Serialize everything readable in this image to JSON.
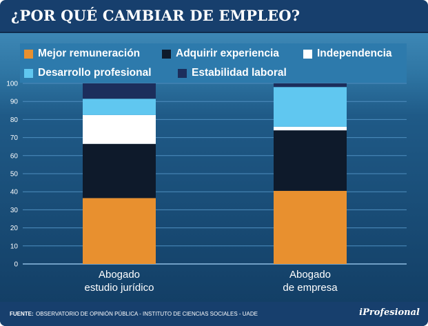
{
  "title": "¿POR QUÉ CAMBIAR DE EMPLEO?",
  "colors": {
    "Mejor remuneración": "#e8902f",
    "Adquirir experiencia": "#0e1a2b",
    "Independencia": "#ffffff",
    "Desarrollo profesional": "#60c7f0",
    "Estabilidad laboral": "#1c2e5c"
  },
  "chart_data": {
    "type": "bar",
    "stacked": true,
    "categories": [
      [
        "Abogado",
        "estudio jurídico"
      ],
      [
        "Abogado",
        "de empresa"
      ]
    ],
    "series": [
      {
        "name": "Mejor remuneración",
        "values": [
          36.5,
          40.5
        ]
      },
      {
        "name": "Adquirir experiencia",
        "values": [
          30,
          33.5
        ]
      },
      {
        "name": "Independencia",
        "values": [
          16,
          2
        ]
      },
      {
        "name": "Desarrollo profesional",
        "values": [
          9,
          22
        ]
      },
      {
        "name": "Estabilidad laboral",
        "values": [
          8.5,
          2
        ]
      }
    ],
    "ylim": [
      0,
      100
    ],
    "yticks": [
      0,
      10,
      20,
      30,
      40,
      50,
      60,
      70,
      80,
      90,
      100
    ],
    "grid": true,
    "legend_position": "top"
  },
  "footer": {
    "source_key": "FUENTE:",
    "source_text": "OBSERVATORIO DE OPINIÓN PÚBLICA - INSTITUTO DE CIENCIAS SOCIALES - UADE",
    "brand": "iProfesional"
  }
}
